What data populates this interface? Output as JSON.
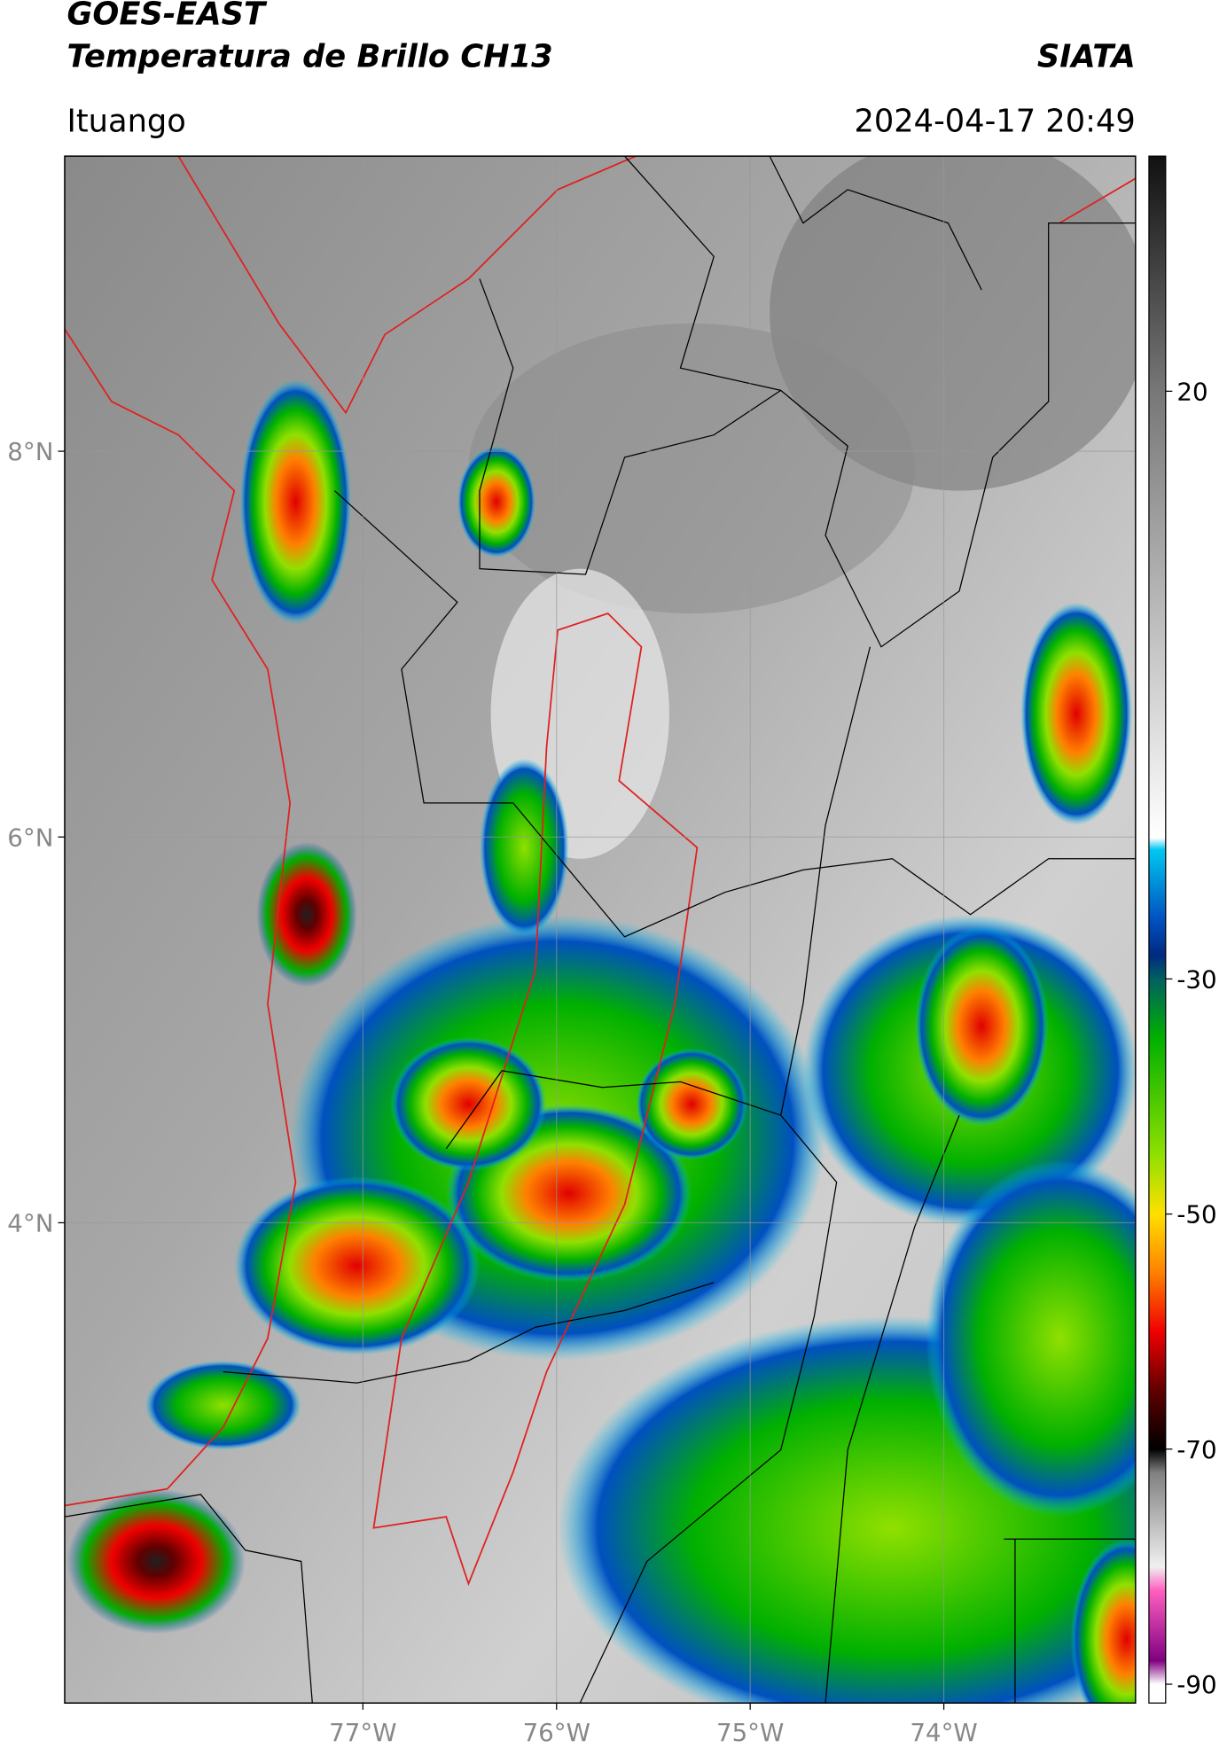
{
  "header": {
    "title": "GOES-EAST",
    "subtitle": "Temperatura de Brillo CH13",
    "brand": "SIATA",
    "location": "Ituango",
    "datetime": "2024-04-17 20:49"
  },
  "map": {
    "lonlim": [
      -78.54,
      -73.01
    ],
    "latlim": [
      1.51,
      9.53
    ],
    "lon_ticks": [
      {
        "value": -77,
        "label": "77°W"
      },
      {
        "value": -76,
        "label": "76°W"
      },
      {
        "value": -75,
        "label": "75°W"
      },
      {
        "value": -74,
        "label": "74°W"
      }
    ],
    "lat_ticks": [
      {
        "value": 8,
        "label": "8°N"
      },
      {
        "value": 6,
        "label": "6°N"
      },
      {
        "value": 4,
        "label": "4°N"
      }
    ],
    "grid": true
  },
  "colorbar": {
    "lim": [
      -91.6,
      40
    ],
    "ticks": [
      20,
      -30,
      -50,
      -70,
      -90
    ],
    "stops": [
      {
        "value": 40,
        "color": "#111111"
      },
      {
        "value": 20,
        "color": "#777777"
      },
      {
        "value": -18,
        "color": "#ffffff"
      },
      {
        "value": -19,
        "color": "#00c8f0"
      },
      {
        "value": -25,
        "color": "#0050c0"
      },
      {
        "value": -28,
        "color": "#002a80"
      },
      {
        "value": -30,
        "color": "#006060"
      },
      {
        "value": -35,
        "color": "#00b000"
      },
      {
        "value": -45,
        "color": "#90e000"
      },
      {
        "value": -50,
        "color": "#ffe000"
      },
      {
        "value": -55,
        "color": "#ff8000"
      },
      {
        "value": -60,
        "color": "#f00000"
      },
      {
        "value": -65,
        "color": "#600000"
      },
      {
        "value": -70,
        "color": "#000000"
      },
      {
        "value": -72,
        "color": "#808080"
      },
      {
        "value": -80,
        "color": "#f0f0f0"
      },
      {
        "value": -82,
        "color": "#ff60c0"
      },
      {
        "value": -88,
        "color": "#800080"
      },
      {
        "value": -90,
        "color": "#ffffff"
      }
    ]
  }
}
